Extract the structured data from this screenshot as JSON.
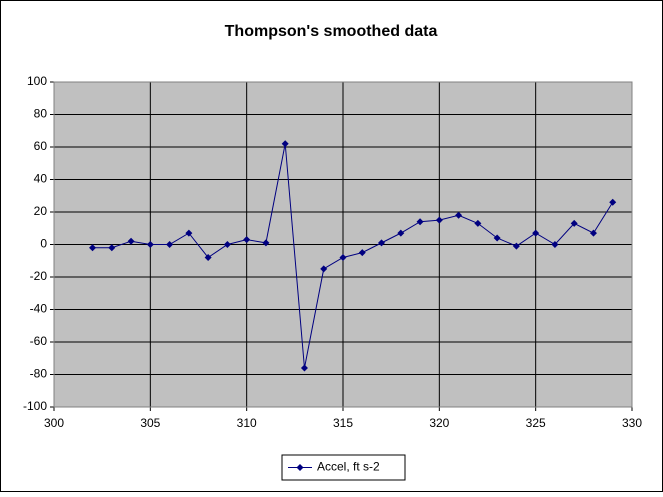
{
  "chart_data": {
    "type": "line",
    "title": "Thompson's smoothed data",
    "x": [
      302,
      303,
      304,
      305,
      306,
      307,
      308,
      309,
      310,
      311,
      312,
      313,
      314,
      315,
      316,
      317,
      318,
      319,
      320,
      321,
      322,
      323,
      324,
      325,
      326,
      327,
      328,
      329
    ],
    "series": [
      {
        "name": "Accel, ft s-2",
        "color": "#000080",
        "values": [
          -2,
          -2,
          2,
          0,
          0,
          7,
          -8,
          0,
          3,
          1,
          62,
          -76,
          -15,
          -8,
          -5,
          1,
          7,
          14,
          15,
          18,
          13,
          4,
          -1,
          7,
          0,
          13,
          7,
          26
        ]
      }
    ],
    "xlim": [
      300,
      330
    ],
    "xticks": [
      300,
      305,
      310,
      315,
      320,
      325,
      330
    ],
    "ylim": [
      -100,
      100
    ],
    "yticks": [
      -100,
      -80,
      -60,
      -40,
      -20,
      0,
      20,
      40,
      60,
      80,
      100
    ],
    "grid": true,
    "legend": "bottom"
  }
}
